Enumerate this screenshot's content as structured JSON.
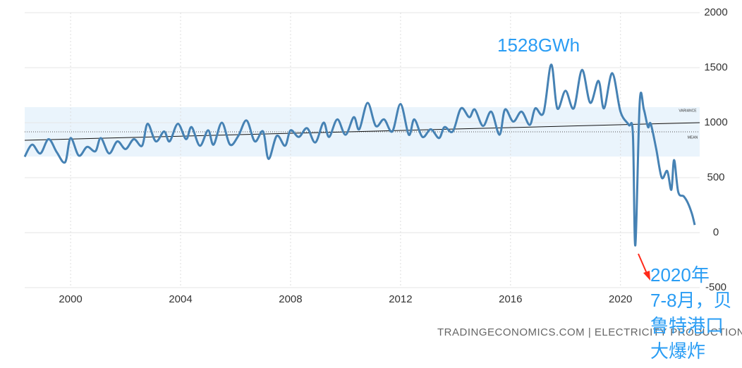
{
  "chart_data": {
    "type": "line",
    "x": [
      1998.33,
      1998.6,
      1998.9,
      1999.2,
      1999.5,
      1999.8,
      2000.0,
      2000.3,
      2000.6,
      2000.9,
      2001.1,
      2001.4,
      2001.7,
      2002.0,
      2002.3,
      2002.6,
      2002.8,
      2003.1,
      2003.4,
      2003.6,
      2003.9,
      2004.2,
      2004.4,
      2004.7,
      2005.0,
      2005.2,
      2005.5,
      2005.8,
      2006.1,
      2006.4,
      2006.7,
      2007.0,
      2007.2,
      2007.5,
      2007.8,
      2008.0,
      2008.3,
      2008.6,
      2008.9,
      2009.2,
      2009.4,
      2009.7,
      2010.0,
      2010.3,
      2010.5,
      2010.8,
      2011.1,
      2011.4,
      2011.7,
      2012.0,
      2012.3,
      2012.5,
      2012.8,
      2013.1,
      2013.4,
      2013.6,
      2013.9,
      2014.2,
      2014.5,
      2014.7,
      2015.0,
      2015.3,
      2015.6,
      2015.8,
      2016.1,
      2016.4,
      2016.7,
      2016.9,
      2017.2,
      2017.48,
      2017.7,
      2018.0,
      2018.3,
      2018.6,
      2018.9,
      2019.2,
      2019.4,
      2019.7,
      2020.0,
      2020.3,
      2020.45,
      2020.54,
      2020.7,
      2020.85,
      2021.0,
      2021.1,
      2021.3,
      2021.5,
      2021.7,
      2021.85,
      2021.95,
      2022.1,
      2022.3,
      2022.45,
      2022.6,
      2022.7
    ],
    "series": [
      {
        "name": "Electricity Production",
        "color": "#4682b4",
        "values": [
          690,
          800,
          720,
          850,
          730,
          640,
          860,
          700,
          780,
          740,
          860,
          720,
          830,
          760,
          850,
          790,
          990,
          830,
          920,
          830,
          990,
          850,
          960,
          790,
          930,
          800,
          1000,
          800,
          880,
          1020,
          830,
          920,
          670,
          880,
          790,
          930,
          870,
          950,
          820,
          1000,
          870,
          1030,
          890,
          1050,
          940,
          1180,
          970,
          1030,
          920,
          1170,
          890,
          1030,
          870,
          940,
          860,
          960,
          920,
          1130,
          1050,
          1120,
          970,
          1100,
          890,
          1120,
          1010,
          1100,
          980,
          1130,
          1090,
          1528,
          1130,
          1290,
          1130,
          1480,
          1180,
          1380,
          1130,
          1450,
          1100,
          980,
          900,
          -115,
          1190,
          1120,
          960,
          990,
          760,
          500,
          560,
          390,
          660,
          370,
          330,
          270,
          170,
          70
        ]
      }
    ],
    "xlim": [
      1998.33,
      2022.88
    ],
    "xticks": [
      2000,
      2004,
      2008,
      2012,
      2016,
      2020
    ],
    "ylim": [
      -500,
      2000
    ],
    "yticks": [
      -500,
      0,
      500,
      1000,
      1500,
      2000
    ],
    "grid": true,
    "variance_band": [
      692,
      1141
    ],
    "variance_label": "VARIANCE",
    "mean": 917,
    "mean_label": "MEAN",
    "trend": {
      "x": [
        1998.33,
        2022.88
      ],
      "values": [
        840,
        1000
      ]
    },
    "annotations": {
      "peak": "1528GWh",
      "event": [
        "2020年",
        "7-8月，贝",
        "鲁特港口",
        "大爆炸"
      ]
    },
    "watermark": "TRADINGECONOMICS.COM | ELECTRICITY PRODUCTION IN LEBANON"
  }
}
